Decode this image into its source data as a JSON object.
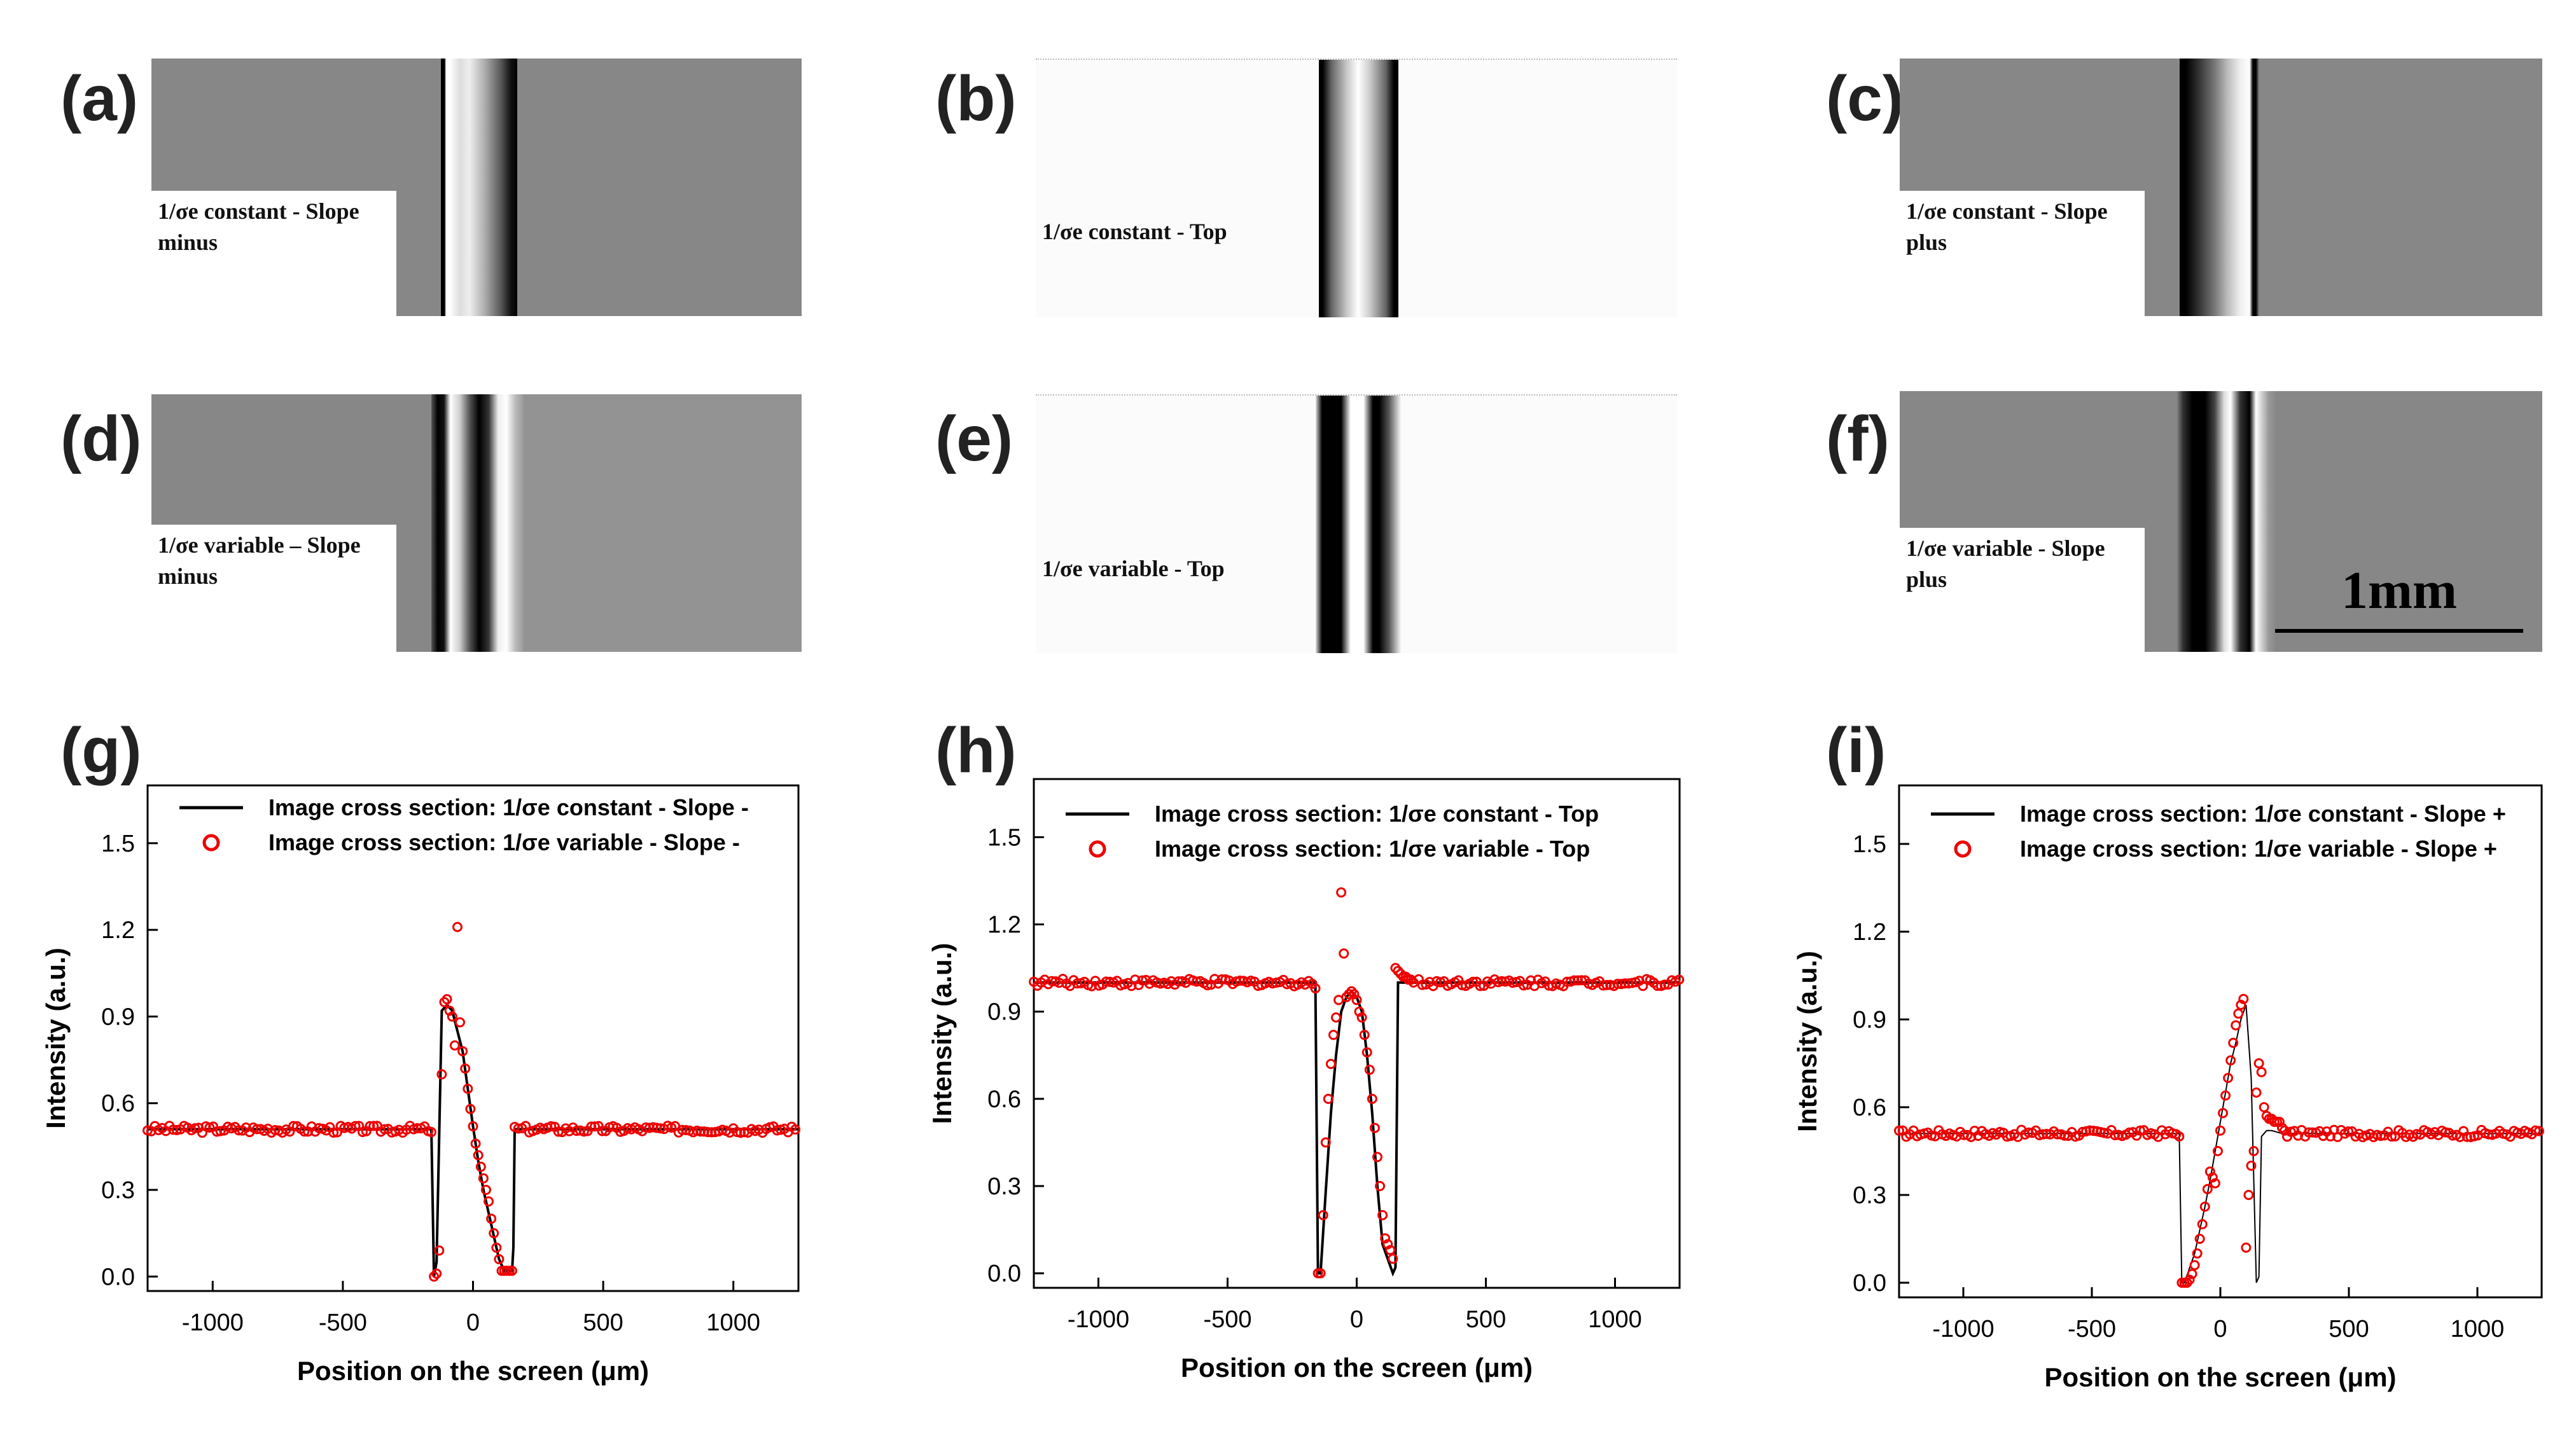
{
  "panels": [
    {
      "label": "(a)",
      "caption": [
        "1/σe constant - Slope",
        "minus"
      ],
      "background": "#878787"
    },
    {
      "label": "(b)",
      "caption": [
        "1/σe constant - Top"
      ],
      "background": "#fbfbfb"
    },
    {
      "label": "(c)",
      "caption": [
        "1/σe constant - Slope",
        "plus"
      ],
      "background": "#878787"
    },
    {
      "label": "(d)",
      "caption": [
        "1/σe variable – Slope",
        "minus"
      ],
      "background": "#878787"
    },
    {
      "label": "(e)",
      "caption": [
        "1/σe variable - Top"
      ],
      "background": "#fbfbfb"
    },
    {
      "label": "(f)",
      "caption": [
        "1/σe variable - Slope",
        "plus"
      ],
      "background": "#878787"
    }
  ],
  "scale_bar": {
    "label": "1mm"
  },
  "charts": [
    {
      "label": "(g)"
    },
    {
      "label": "(h)"
    },
    {
      "label": "(i)"
    }
  ],
  "chart_data": [
    {
      "type": "line",
      "xlabel": "Position on the screen (μm)",
      "ylabel": "Intensity (a.u.)",
      "xlim": [
        -1250,
        1250
      ],
      "ylim": [
        -0.05,
        1.7
      ],
      "xticks": [
        -1000,
        -500,
        0,
        500,
        1000
      ],
      "xtick_labels": [
        "-1000",
        "-500",
        "0",
        "500",
        "1000"
      ],
      "yticks": [
        0.0,
        0.3,
        0.6,
        0.9,
        1.2,
        1.5
      ],
      "ytick_labels": [
        "0.0",
        "0.3",
        "0.6",
        "0.9",
        "1.2",
        "1.5"
      ],
      "legend": [
        "Image cross section: 1/σe constant - Slope -",
        "Image cross section: 1/σe variable   - Slope -"
      ],
      "series": [
        {
          "name": "Image cross section: 1/σe constant - Slope -",
          "style": "line",
          "x": [
            -1250,
            -160,
            -150,
            -140,
            -120,
            -100,
            -80,
            -60,
            -40,
            -20,
            0,
            20,
            40,
            60,
            80,
            100,
            120,
            150,
            155,
            160,
            1250
          ],
          "y": [
            0.51,
            0.51,
            0.0,
            0.05,
            0.92,
            0.94,
            0.92,
            0.85,
            0.78,
            0.65,
            0.52,
            0.4,
            0.3,
            0.22,
            0.14,
            0.06,
            0.02,
            0.02,
            0.1,
            0.51,
            0.51
          ]
        },
        {
          "name": "Image cross section: 1/σe variable   - Slope -",
          "style": "circle",
          "base": 0.51,
          "x_from": -1250,
          "x_to": -170,
          "x_from2": 160,
          "x_to2": 1250,
          "step": 14,
          "x": [
            -160,
            -150,
            -140,
            -130,
            -120,
            -110,
            -100,
            -90,
            -80,
            -70,
            -60,
            -50,
            -40,
            -30,
            -20,
            -10,
            0,
            10,
            20,
            30,
            40,
            50,
            60,
            70,
            80,
            90,
            100,
            110,
            120,
            130,
            140,
            150
          ],
          "y": [
            0.5,
            0.0,
            0.01,
            0.09,
            0.7,
            0.95,
            0.96,
            0.92,
            0.9,
            0.8,
            1.21,
            0.88,
            0.78,
            0.72,
            0.65,
            0.58,
            0.52,
            0.46,
            0.42,
            0.38,
            0.34,
            0.3,
            0.26,
            0.2,
            0.15,
            0.1,
            0.06,
            0.02,
            0.02,
            0.02,
            0.02,
            0.02
          ]
        }
      ]
    },
    {
      "type": "line",
      "xlabel": "Position on the screen (μm)",
      "ylabel": "Intensity (a.u.)",
      "xlim": [
        -1250,
        1250
      ],
      "ylim": [
        -0.05,
        1.7
      ],
      "xticks": [
        -1000,
        -500,
        0,
        500,
        1000
      ],
      "xtick_labels": [
        "-1000",
        "-500",
        "0",
        "500",
        "1000"
      ],
      "yticks": [
        0.0,
        0.3,
        0.6,
        0.9,
        1.2,
        1.5
      ],
      "ytick_labels": [
        "0.0",
        "0.3",
        "0.6",
        "0.9",
        "1.2",
        "1.5"
      ],
      "legend": [
        "Image cross section: 1/σe constant   - Top",
        "Image cross section: 1/σe variable   - Top"
      ],
      "series": [
        {
          "name": "Image cross section: 1/σe constant   - Top",
          "style": "line",
          "x": [
            -1250,
            -160,
            -150,
            -140,
            -120,
            -100,
            -80,
            -60,
            -40,
            -20,
            0,
            20,
            40,
            60,
            80,
            100,
            120,
            140,
            150,
            160,
            1250
          ],
          "y": [
            1.0,
            1.0,
            0.0,
            0.0,
            0.28,
            0.55,
            0.75,
            0.9,
            0.95,
            0.97,
            0.95,
            0.9,
            0.75,
            0.55,
            0.3,
            0.1,
            0.05,
            0.0,
            0.02,
            1.0,
            1.0
          ]
        },
        {
          "name": "Image cross section: 1/σe variable   - Top",
          "style": "circle",
          "base": 1.0,
          "x_from": -1250,
          "x_to": -170,
          "x_from2": 240,
          "x_to2": 1250,
          "step": 14,
          "x": [
            -160,
            -150,
            -140,
            -130,
            -120,
            -110,
            -100,
            -90,
            -80,
            -70,
            -60,
            -50,
            -40,
            -30,
            -20,
            -10,
            0,
            10,
            20,
            30,
            40,
            50,
            60,
            70,
            80,
            90,
            100,
            110,
            120,
            130,
            140,
            150,
            160,
            170,
            180,
            190,
            200,
            210,
            220
          ],
          "y": [
            0.98,
            0.0,
            0.0,
            0.2,
            0.45,
            0.6,
            0.72,
            0.82,
            0.88,
            0.94,
            1.31,
            1.1,
            0.95,
            0.96,
            0.97,
            0.96,
            0.94,
            0.9,
            0.88,
            0.82,
            0.76,
            0.7,
            0.6,
            0.5,
            0.4,
            0.3,
            0.2,
            0.12,
            0.1,
            0.08,
            0.05,
            1.05,
            1.04,
            1.03,
            1.02,
            1.02,
            1.01,
            1.01,
            1.0
          ]
        }
      ]
    },
    {
      "type": "line",
      "xlabel": "Position on the screen (μm)",
      "ylabel": "Intensity (a.u.)",
      "xlim": [
        -1250,
        1250
      ],
      "ylim": [
        -0.05,
        1.7
      ],
      "xticks": [
        -1000,
        -500,
        0,
        500,
        1000
      ],
      "xtick_labels": [
        "-1000",
        "-500",
        "0",
        "500",
        "1000"
      ],
      "yticks": [
        0.0,
        0.3,
        0.6,
        0.9,
        1.2,
        1.5
      ],
      "ytick_labels": [
        "0.0",
        "0.3",
        "0.6",
        "0.9",
        "1.2",
        "1.5"
      ],
      "legend": [
        "Image cross section: 1/σe constant - Slope +",
        "Image cross section: 1/σe variable   - Slope +"
      ],
      "series": [
        {
          "name": "Image cross section: 1/σe constant - Slope +",
          "style": "line",
          "x": [
            -1250,
            -160,
            -150,
            -140,
            -120,
            -100,
            -80,
            -60,
            -40,
            -20,
            0,
            20,
            40,
            60,
            80,
            100,
            120,
            140,
            150,
            160,
            180,
            200,
            240,
            1250
          ],
          "y": [
            0.51,
            0.51,
            0.0,
            0.0,
            0.05,
            0.1,
            0.18,
            0.26,
            0.35,
            0.45,
            0.55,
            0.65,
            0.75,
            0.82,
            0.9,
            0.95,
            0.7,
            0.0,
            0.02,
            0.5,
            0.52,
            0.52,
            0.51,
            0.51
          ]
        },
        {
          "name": "Image cross section: 1/σe variable   - Slope +",
          "style": "circle",
          "base": 0.51,
          "x_from": -1250,
          "x_to": -170,
          "x_from2": 260,
          "x_to2": 1250,
          "step": 14,
          "x": [
            -160,
            -150,
            -140,
            -130,
            -120,
            -110,
            -100,
            -90,
            -80,
            -70,
            -60,
            -50,
            -40,
            -30,
            -20,
            -10,
            0,
            10,
            20,
            30,
            40,
            50,
            60,
            70,
            80,
            90,
            100,
            110,
            120,
            130,
            140,
            150,
            160,
            170,
            180,
            190,
            200,
            210,
            220,
            230,
            240,
            250
          ],
          "y": [
            0.5,
            0.0,
            0.0,
            0.0,
            0.01,
            0.03,
            0.06,
            0.1,
            0.15,
            0.2,
            0.26,
            0.32,
            0.38,
            0.36,
            0.34,
            0.45,
            0.52,
            0.58,
            0.64,
            0.7,
            0.76,
            0.82,
            0.88,
            0.92,
            0.95,
            0.97,
            0.12,
            0.3,
            0.4,
            0.45,
            0.65,
            0.75,
            0.72,
            0.6,
            0.57,
            0.56,
            0.56,
            0.55,
            0.55,
            0.55,
            0.53,
            0.52
          ]
        }
      ]
    }
  ]
}
